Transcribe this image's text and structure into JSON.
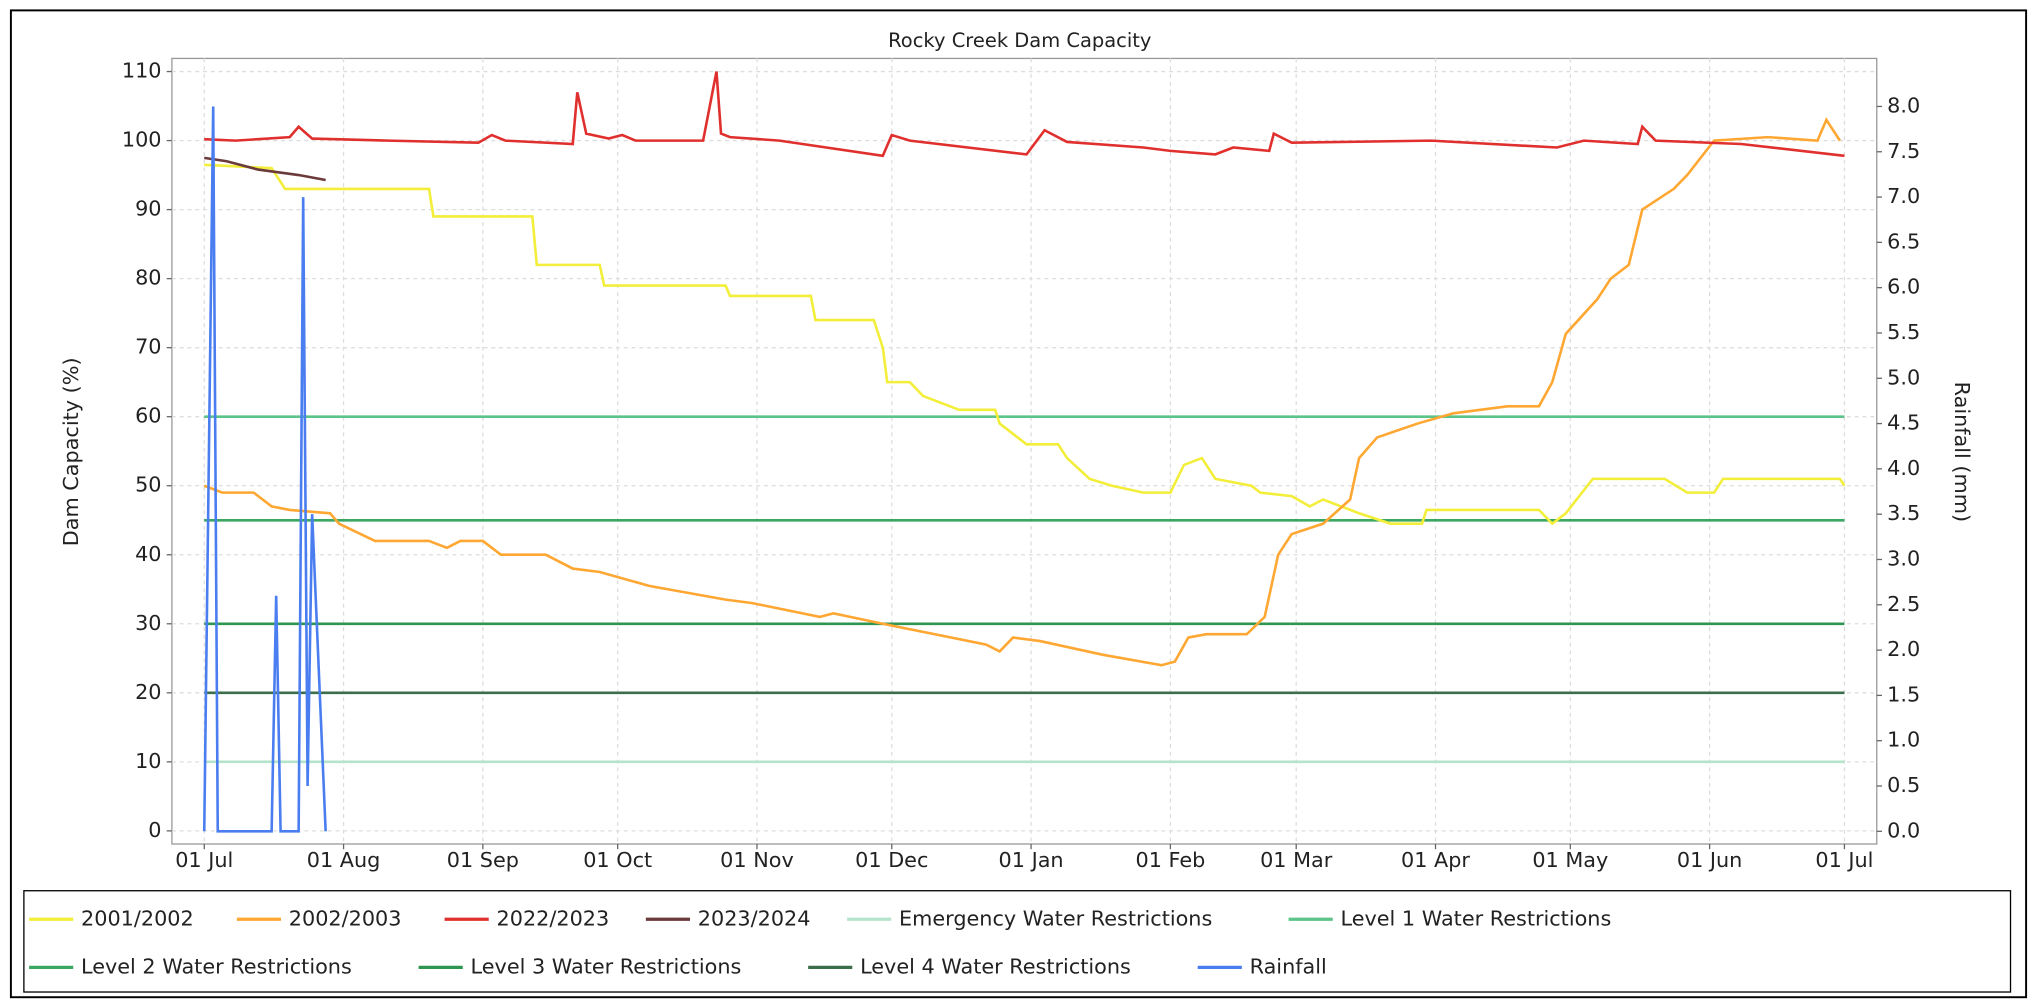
{
  "chart_data": {
    "type": "line",
    "title": "Rocky Creek Dam Capacity",
    "y_label": "Dam Capacity (%)",
    "y2_label": "Rainfall (mm)",
    "xlim": [
      -7.2,
      372.2
    ],
    "xticks": [
      {
        "value": 0,
        "label": "01 Jul"
      },
      {
        "value": 31,
        "label": "01 Aug"
      },
      {
        "value": 62,
        "label": "01 Sep"
      },
      {
        "value": 92,
        "label": "01 Oct"
      },
      {
        "value": 123,
        "label": "01 Nov"
      },
      {
        "value": 153,
        "label": "01 Dec"
      },
      {
        "value": 184,
        "label": "01 Jan"
      },
      {
        "value": 215,
        "label": "01 Feb"
      },
      {
        "value": 243,
        "label": "01 Mar"
      },
      {
        "value": 274,
        "label": "01 Apr"
      },
      {
        "value": 304,
        "label": "01 May"
      },
      {
        "value": 335,
        "label": "01 Jun"
      },
      {
        "value": 365,
        "label": "01 Jul"
      }
    ],
    "ylim": [
      -1.9,
      111.9
    ],
    "yticks": [
      0,
      10,
      20,
      30,
      40,
      50,
      60,
      70,
      80,
      90,
      100,
      110
    ],
    "y2lim": [
      -0.14,
      8.53
    ],
    "y2ticks": [
      {
        "value": 0,
        "label": "0.0"
      },
      0.5,
      {
        "value": 1,
        "label": "1.0"
      },
      1.5,
      {
        "value": 2,
        "label": "2.0"
      },
      2.5,
      {
        "value": 3,
        "label": "3.0"
      },
      3.5,
      {
        "value": 4,
        "label": "4.0"
      },
      4.5,
      {
        "value": 5,
        "label": "5.0"
      },
      5.5,
      {
        "value": 6,
        "label": "6.0"
      },
      6.5,
      {
        "value": 7,
        "label": "7.0"
      },
      7.5,
      {
        "value": 8,
        "label": "8.0"
      }
    ],
    "grid": true,
    "series": [
      {
        "name": "2001/2002",
        "color": "#f2ee3a",
        "x": [
          0,
          15,
          18,
          50,
          51,
          73,
          74,
          88,
          89,
          116,
          117,
          135,
          136,
          149,
          151,
          152,
          157,
          160,
          168,
          176,
          177,
          183,
          190,
          192,
          197,
          202,
          209,
          215,
          218,
          222,
          225,
          233,
          235,
          242,
          246,
          249,
          257,
          264,
          271,
          272,
          297,
          300,
          303,
          309,
          325,
          330,
          336,
          338,
          364,
          365
        ],
        "values": [
          96.5,
          96,
          93,
          93,
          89,
          89,
          82,
          82,
          79,
          79,
          77.5,
          77.5,
          74,
          74,
          70,
          65,
          65,
          63,
          61,
          61,
          59,
          56,
          56,
          54,
          51,
          50,
          49,
          49,
          53,
          54,
          51,
          50,
          49,
          48.5,
          47,
          48,
          46,
          44.5,
          44.5,
          46.5,
          46.5,
          44.5,
          46,
          51,
          51,
          49,
          49,
          51,
          51,
          50
        ]
      },
      {
        "name": "2002/2003",
        "color": "#ffa733",
        "x": [
          0,
          4,
          11,
          15,
          19,
          28,
          30,
          38,
          50,
          54,
          57,
          62,
          66,
          76,
          82,
          88,
          99,
          116,
          122,
          137,
          140,
          151,
          174,
          177,
          180,
          186,
          200,
          213,
          216,
          219,
          223,
          232,
          236,
          239,
          242,
          249,
          255,
          257,
          261,
          270,
          278,
          290,
          297,
          300,
          303,
          310,
          313,
          317,
          320,
          327,
          330,
          336,
          348,
          359,
          361,
          364
        ],
        "values": [
          50,
          49,
          49,
          47,
          46.5,
          46,
          44.5,
          42,
          42,
          41,
          42,
          42,
          40,
          40,
          38,
          37.5,
          35.5,
          33.5,
          33,
          31,
          31.5,
          30,
          27,
          26,
          28,
          27.5,
          25.5,
          24,
          24.5,
          28,
          28.5,
          28.5,
          31,
          40,
          43,
          44.5,
          48,
          54,
          57,
          59,
          60.5,
          61.5,
          61.5,
          65,
          72,
          77,
          80,
          82,
          90,
          93,
          95,
          100,
          100.5,
          100,
          103,
          100
        ]
      },
      {
        "name": "2022/2023",
        "color": "#e0302e",
        "x": [
          0,
          7,
          19,
          21,
          24,
          41,
          61,
          64,
          67,
          82,
          83,
          85,
          90,
          93,
          96,
          111,
          114,
          115,
          117,
          128,
          151,
          153,
          157,
          183,
          187,
          192,
          209,
          215,
          225,
          229,
          237,
          238,
          242,
          273,
          301,
          307,
          319,
          320,
          323,
          342,
          365
        ],
        "values": [
          100.2,
          100,
          100.5,
          102,
          100.3,
          100,
          99.7,
          100.8,
          100,
          99.5,
          107,
          101,
          100.3,
          100.8,
          100,
          100,
          110,
          101,
          100.5,
          100,
          97.8,
          100.8,
          100,
          98,
          101.5,
          99.8,
          99,
          98.5,
          98,
          99,
          98.5,
          101,
          99.7,
          100,
          99,
          100,
          99.5,
          102,
          100,
          99.5,
          97.8
        ]
      },
      {
        "name": "2023/2024",
        "color": "#6b3a3a",
        "x": [
          0,
          5,
          12,
          21,
          27
        ],
        "values": [
          97.5,
          97,
          95.8,
          95,
          94.3
        ]
      },
      {
        "name": "Emergency Water Restrictions",
        "color": "#b4e4cc",
        "x": [
          0,
          365
        ],
        "values": [
          10,
          10
        ]
      },
      {
        "name": "Level 1 Water Restrictions",
        "color": "#5cc488",
        "x": [
          0,
          365
        ],
        "values": [
          60,
          60
        ]
      },
      {
        "name": "Level 2 Water Restrictions",
        "color": "#3aa862",
        "x": [
          0,
          365
        ],
        "values": [
          45,
          45
        ]
      },
      {
        "name": "Level 3 Water Restrictions",
        "color": "#2e9650",
        "x": [
          0,
          365
        ],
        "values": [
          30,
          30
        ]
      },
      {
        "name": "Level 4 Water Restrictions",
        "color": "#3d6e4c",
        "x": [
          0,
          365
        ],
        "values": [
          20,
          20
        ]
      },
      {
        "name": "Rainfall",
        "color": "#4a7ef0",
        "axis": "y2",
        "x": [
          0,
          2,
          3,
          15,
          16,
          17,
          21,
          22,
          23,
          24,
          27
        ],
        "values": [
          0,
          8.0,
          0,
          0,
          2.6,
          0,
          0,
          7.0,
          0.5,
          3.5,
          0
        ]
      }
    ]
  }
}
